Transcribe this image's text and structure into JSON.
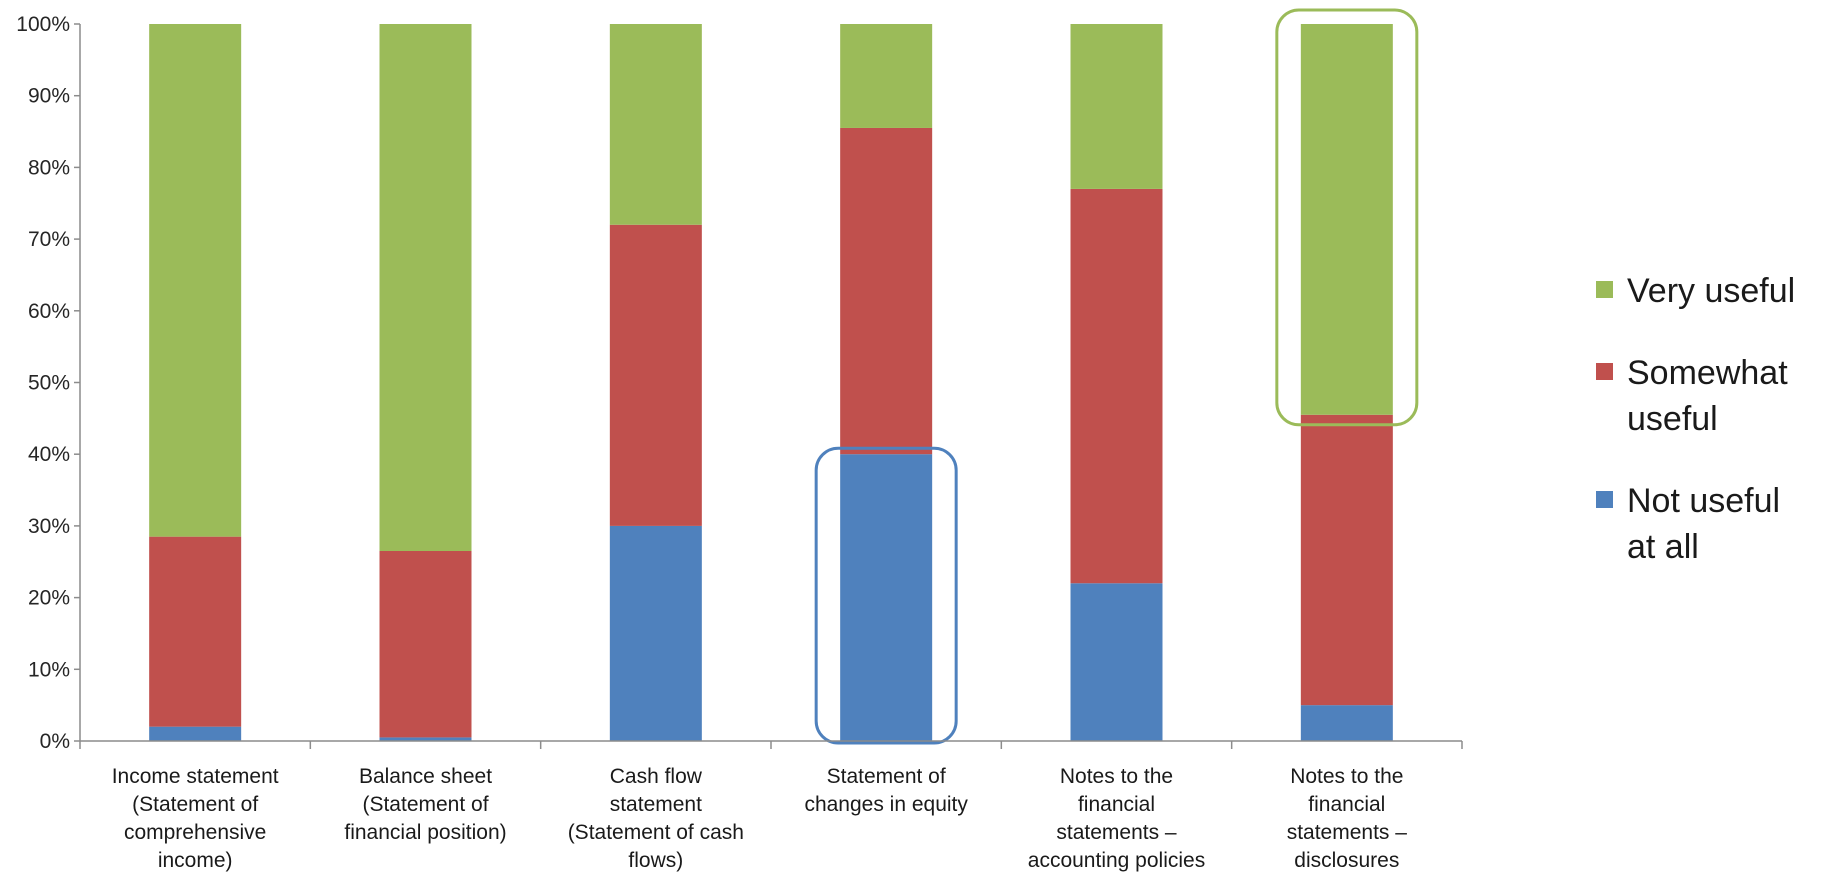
{
  "chart_data": {
    "type": "bar",
    "stacked": true,
    "categories": [
      "Income statement (Statement of comprehensive income)",
      "Balance sheet (Statement of financial position)",
      "Cash flow statement (Statement of cash flows)",
      "Statement of changes in equity",
      "Notes to the financial statements – accounting policies",
      "Notes to the financial statements – disclosures"
    ],
    "category_lines": [
      [
        "Income statement",
        "(Statement of",
        "comprehensive",
        "income)"
      ],
      [
        "Balance sheet",
        "(Statement of",
        "financial position)"
      ],
      [
        "Cash flow",
        "statement",
        "(Statement of cash",
        "flows)"
      ],
      [
        "Statement of",
        "changes in equity"
      ],
      [
        "Notes to the",
        "financial",
        "statements –",
        "accounting policies"
      ],
      [
        "Notes to the",
        "financial",
        "statements –",
        "disclosures"
      ]
    ],
    "series": [
      {
        "name": "Not useful at all",
        "values": [
          2,
          0.5,
          30,
          40,
          22,
          5
        ],
        "color": "#4f81bd"
      },
      {
        "name": "Somewhat useful",
        "values": [
          26.5,
          26,
          42,
          45.5,
          55,
          40.5
        ],
        "color": "#c0504d"
      },
      {
        "name": "Very useful",
        "values": [
          71.5,
          73.5,
          28,
          14.5,
          23,
          54.5
        ],
        "color": "#9bbb59"
      }
    ],
    "legend_order": [
      "Very useful",
      "Somewhat useful",
      "Not useful at all"
    ],
    "legend_lines": {
      "Very useful": [
        "Very useful"
      ],
      "Somewhat useful": [
        "Somewhat",
        "useful"
      ],
      "Not useful at all": [
        "Not useful",
        "at all"
      ]
    },
    "legend_position": "right",
    "ylim": [
      0,
      100
    ],
    "yticks": [
      "0%",
      "10%",
      "20%",
      "30%",
      "40%",
      "50%",
      "60%",
      "70%",
      "80%",
      "90%",
      "100%"
    ],
    "grid": false,
    "highlights": [
      {
        "category_index": 3,
        "from": 0,
        "to": 40,
        "color": "#4f81bd"
      },
      {
        "category_index": 5,
        "from": 45.5,
        "to": 100,
        "color": "#9bbb59"
      }
    ],
    "xlabel": "",
    "ylabel": "",
    "title": ""
  }
}
